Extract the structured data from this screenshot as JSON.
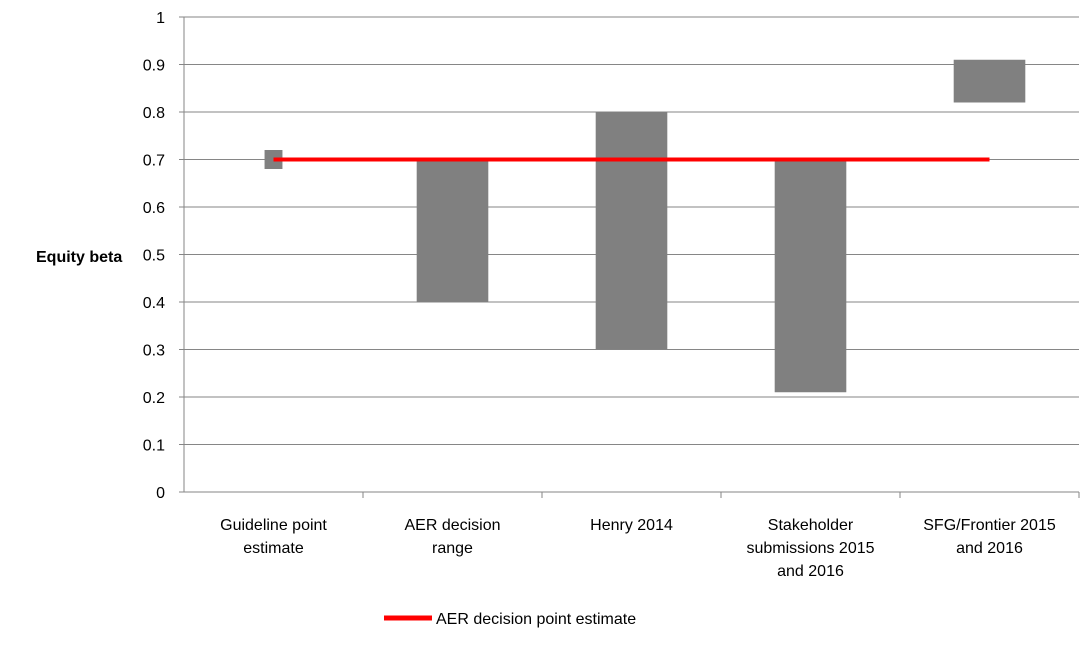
{
  "chart_data": {
    "type": "bar",
    "subtype": "floating-range",
    "title": "",
    "xlabel": "",
    "ylabel": "Equity beta",
    "ylim": [
      0,
      1
    ],
    "yticks": [
      "0",
      "0.1",
      "0.2",
      "0.3",
      "0.4",
      "0.5",
      "0.6",
      "0.7",
      "0.8",
      "0.9",
      "1"
    ],
    "grid": true,
    "categories": [
      [
        "Guideline point",
        "estimate"
      ],
      [
        "AER decision",
        "range"
      ],
      [
        "Henry 2014"
      ],
      [
        "Stakeholder",
        "submissions 2015",
        "and 2016"
      ],
      [
        "SFG/Frontier 2015",
        "and 2016"
      ]
    ],
    "ranges": [
      {
        "low": 0.68,
        "high": 0.72
      },
      {
        "low": 0.4,
        "high": 0.7
      },
      {
        "low": 0.3,
        "high": 0.8
      },
      {
        "low": 0.21,
        "high": 0.7
      },
      {
        "low": 0.82,
        "high": 0.91
      }
    ],
    "bar_color": "#808080",
    "reference_line": {
      "name": "AER decision point estimate",
      "value": 0.7,
      "color": "#ff0000"
    },
    "legend_position": "bottom"
  }
}
